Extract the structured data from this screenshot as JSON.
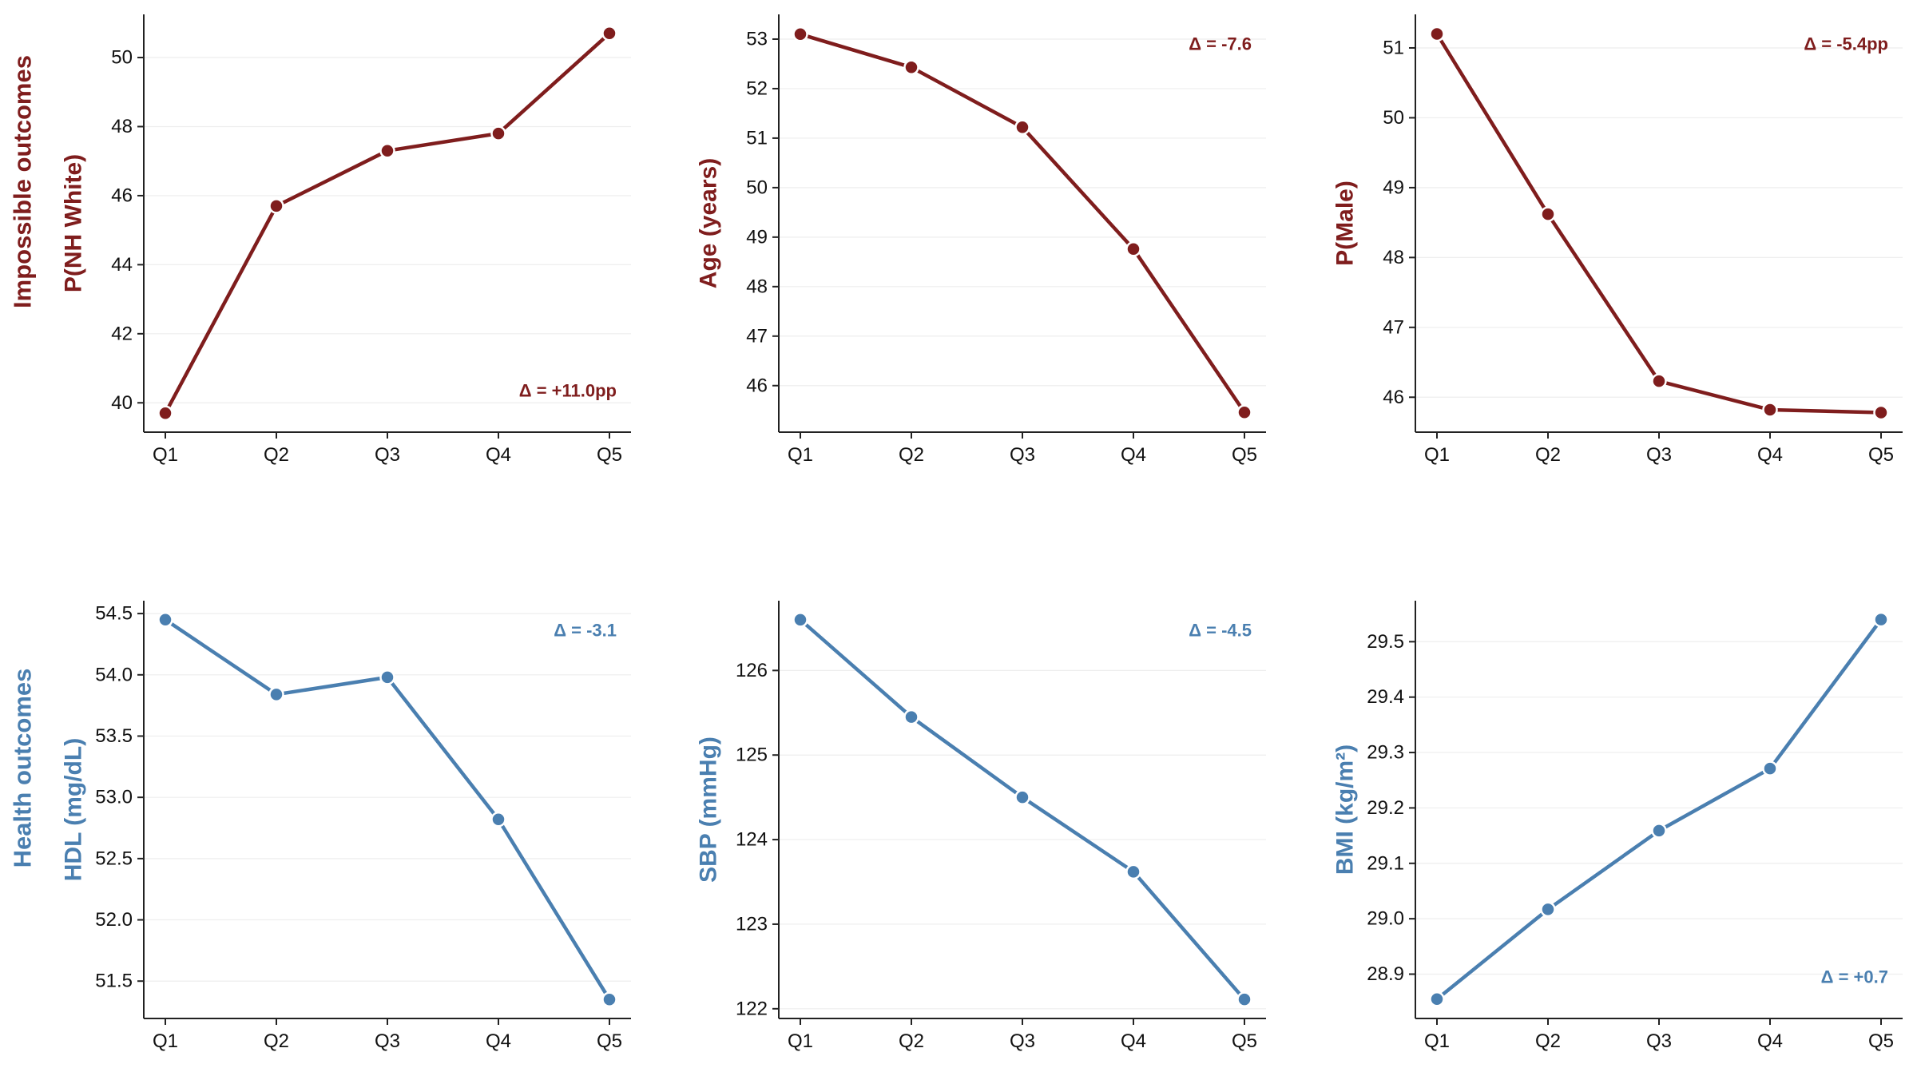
{
  "colors": {
    "impossible": "#7f1d1d",
    "health": "#4a7fb0",
    "axis": "#222222",
    "grid": "#eeeeee"
  },
  "rows": [
    {
      "label": "Impossible outcomes",
      "color_key": "impossible"
    },
    {
      "label": "Health outcomes",
      "color_key": "health"
    }
  ],
  "chart_data": [
    {
      "type": "line",
      "row": 0,
      "col": 0,
      "categories": [
        "Q1",
        "Q2",
        "Q3",
        "Q4",
        "Q5"
      ],
      "values": [
        39.7,
        45.7,
        47.3,
        47.8,
        50.7
      ],
      "ylabel": "P(NH White)",
      "yticks": [
        40,
        42,
        44,
        46,
        48,
        50
      ],
      "tick_decimals": 0,
      "ylim": [
        39.15,
        51.25
      ],
      "annotation": "Δ = +11.0pp",
      "annotation_position": "bottom-right",
      "color_key": "impossible"
    },
    {
      "type": "line",
      "row": 0,
      "col": 1,
      "categories": [
        "Q1",
        "Q2",
        "Q3",
        "Q4",
        "Q5"
      ],
      "values": [
        53.1,
        52.43,
        51.22,
        48.76,
        45.46
      ],
      "ylabel": "Age (years)",
      "yticks": [
        46,
        47,
        48,
        49,
        50,
        51,
        52,
        53
      ],
      "tick_decimals": 0,
      "ylim": [
        45.06,
        53.5
      ],
      "annotation": "Δ = -7.6",
      "annotation_position": "top-right",
      "color_key": "impossible"
    },
    {
      "type": "line",
      "row": 0,
      "col": 2,
      "categories": [
        "Q1",
        "Q2",
        "Q3",
        "Q4",
        "Q5"
      ],
      "values": [
        51.2,
        48.62,
        46.23,
        45.82,
        45.78
      ],
      "ylabel": "P(Male)",
      "yticks": [
        46,
        47,
        48,
        49,
        50,
        51
      ],
      "tick_decimals": 0,
      "ylim": [
        45.5,
        51.48
      ],
      "annotation": "Δ = -5.4pp",
      "annotation_position": "top-right",
      "color_key": "impossible"
    },
    {
      "type": "line",
      "row": 1,
      "col": 0,
      "categories": [
        "Q1",
        "Q2",
        "Q3",
        "Q4",
        "Q5"
      ],
      "values": [
        54.45,
        53.84,
        53.98,
        52.82,
        51.35
      ],
      "ylabel": "HDL (mg/dL)",
      "yticks": [
        51.5,
        52.0,
        52.5,
        53.0,
        53.5,
        54.0,
        54.5
      ],
      "tick_decimals": 1,
      "ylim": [
        51.195,
        54.605
      ],
      "annotation": "Δ = -3.1",
      "annotation_position": "top-right",
      "color_key": "health"
    },
    {
      "type": "line",
      "row": 1,
      "col": 1,
      "categories": [
        "Q1",
        "Q2",
        "Q3",
        "Q4",
        "Q5"
      ],
      "values": [
        126.6,
        125.45,
        124.5,
        123.62,
        122.11
      ],
      "ylabel": "SBP (mmHg)",
      "yticks": [
        122,
        123,
        124,
        125,
        126
      ],
      "tick_decimals": 0,
      "ylim": [
        121.885,
        126.825
      ],
      "annotation": "Δ = -4.5",
      "annotation_position": "top-right",
      "color_key": "health"
    },
    {
      "type": "line",
      "row": 1,
      "col": 2,
      "categories": [
        "Q1",
        "Q2",
        "Q3",
        "Q4",
        "Q5"
      ],
      "values": [
        28.855,
        29.017,
        29.159,
        29.271,
        29.54
      ],
      "ylabel": "BMI (kg/m²)",
      "yticks": [
        28.9,
        29.0,
        29.1,
        29.2,
        29.3,
        29.4,
        29.5
      ],
      "tick_decimals": 1,
      "ylim": [
        28.82,
        29.574
      ],
      "annotation": "Δ = +0.7",
      "annotation_position": "bottom-right",
      "color_key": "health"
    }
  ]
}
